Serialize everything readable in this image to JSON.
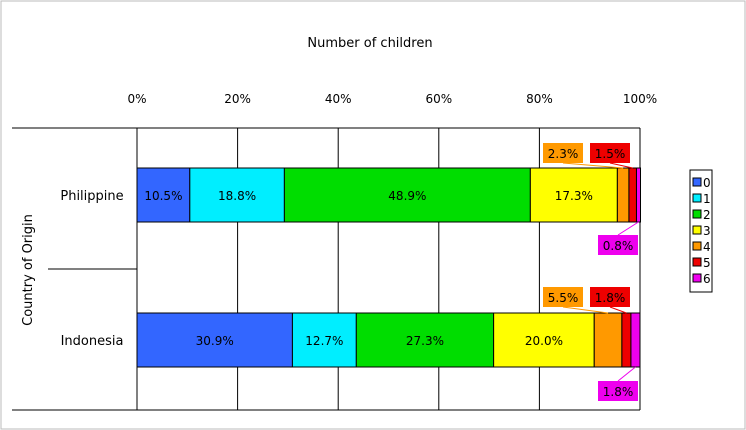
{
  "chart_data": {
    "type": "bar",
    "orientation": "horizontal",
    "stacked": true,
    "percent": true,
    "title": "Number of children",
    "xlabel": "",
    "ylabel": "Country of Origin",
    "xlim": [
      0,
      100
    ],
    "x_tick_labels": [
      "0%",
      "20%",
      "40%",
      "60%",
      "80%",
      "100%"
    ],
    "grid": true,
    "legend_position": "right",
    "categories": [
      "Philippine",
      "Indonesia"
    ],
    "series": [
      {
        "name": "0",
        "color": "#3366ff",
        "values": [
          10.5,
          30.9
        ],
        "labels": [
          "10.5%",
          "30.9%"
        ]
      },
      {
        "name": "1",
        "color": "#00eeff",
        "values": [
          18.8,
          12.7
        ],
        "labels": [
          "18.8%",
          "12.7%"
        ]
      },
      {
        "name": "2",
        "color": "#00dd00",
        "values": [
          48.9,
          27.3
        ],
        "labels": [
          "48.9%",
          "27.3%"
        ]
      },
      {
        "name": "3",
        "color": "#ffff00",
        "values": [
          17.3,
          20.0
        ],
        "labels": [
          "17.3%",
          "20.0%"
        ]
      },
      {
        "name": "4",
        "color": "#ff9900",
        "values": [
          2.3,
          5.5
        ],
        "labels": [
          "2.3%",
          "5.5%"
        ]
      },
      {
        "name": "5",
        "color": "#ee0000",
        "values": [
          1.5,
          1.8
        ],
        "labels": [
          "1.5%",
          "1.8%"
        ]
      },
      {
        "name": "6",
        "color": "#ee00ee",
        "values": [
          0.8,
          1.8
        ],
        "labels": [
          "0.8%",
          "1.8%"
        ]
      }
    ]
  }
}
